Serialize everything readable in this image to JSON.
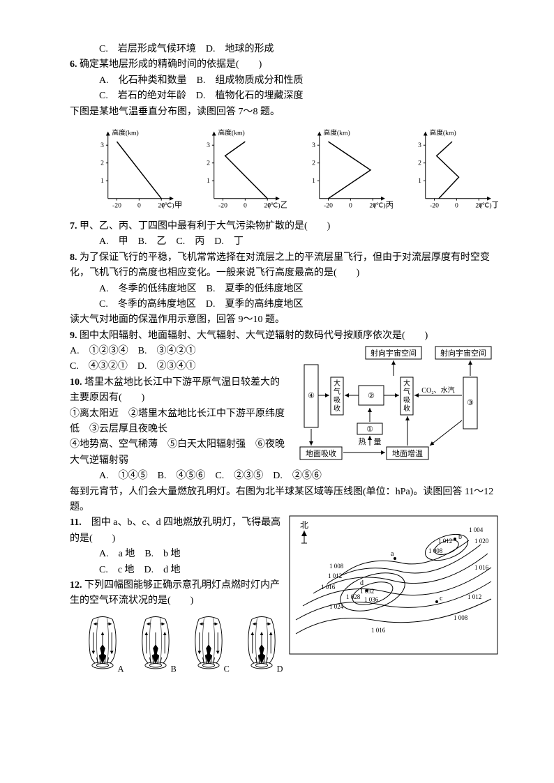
{
  "line_top": "C.　岩层形成气候环境　D.　地球的形成",
  "q6": {
    "stem": "确定某地层形成的精确时间的依据是(　　)",
    "optA": "A.　化石种类和数量　B.　组成物质成分和性质",
    "optC": "C.　岩石的绝对年龄　D.　植物化石的埋藏深度"
  },
  "pre7": "下图是某地气温垂直分布图，读图回答 7～8 题。",
  "charts": {
    "type": "line",
    "ylabel": "高度(km)",
    "xlabel_unit": "(℃)",
    "yticks": [
      1,
      2,
      3
    ],
    "xticks": [
      -20,
      0,
      20
    ],
    "xlim": [
      -28,
      28
    ],
    "ylim": [
      0,
      3.5
    ],
    "axis_color": "#000000",
    "line_color": "#000000",
    "line_width": 1.5,
    "background_color": "#ffffff",
    "fontsize": 10,
    "panels": [
      {
        "label": "甲",
        "points": [
          [
            20,
            0
          ],
          [
            -20,
            3.2
          ]
        ]
      },
      {
        "label": "乙",
        "points": [
          [
            20,
            0
          ],
          [
            -18,
            2.4
          ],
          [
            0,
            3.2
          ]
        ]
      },
      {
        "label": "丙",
        "points": [
          [
            -20,
            0
          ],
          [
            18,
            1.6
          ],
          [
            -20,
            3.2
          ]
        ]
      },
      {
        "label": "丁",
        "points": [
          [
            -16,
            0
          ],
          [
            2,
            1.2
          ],
          [
            -18,
            2.4
          ],
          [
            -4,
            3.2
          ]
        ]
      }
    ]
  },
  "q7": {
    "stem": "甲、乙、丙、丁四图中最有利于大气污染物扩散的是(　　)",
    "opts": "A.　甲　B.　乙　C.　丙　D.　丁"
  },
  "q8": {
    "stem": "为了保证飞行的平稳，飞机常常选择在对流层之上的平流层里飞行，但由于对流层厚度有时空变化，飞机飞行的高度也相应变化。一般来说飞行高度最高的是(　　)",
    "optA": "A.　冬季的低纬度地区　B.　夏季的低纬度地区",
    "optC": "C.　冬季的高纬度地区　D.　夏季的高纬度地区"
  },
  "pre9": "读大气对地面的保温作用示意图，回答 9～10 题。",
  "q9": {
    "stem": "图中太阳辐射、地面辐射、大气辐射、大气逆辐射的数码代号按顺序依次是(　　)",
    "optA": "A.　①②③④　B.　③④②①",
    "optC": "C.　④③②①　D.　②③④①"
  },
  "q10": {
    "stem": "塔里木盆地比长江中下游平原气温日较差大的主要原因有(　　)",
    "line1": "①离太阳近　②塔里木盆地比长江中下游平原纬度低　③云层厚且夜晚长",
    "line2": "④地势高、空气稀薄　⑤白天太阳辐射强　⑥夜晚大气逆辐射弱",
    "opts": "A.　①④⑤　B.　④⑤⑥　C.　②③⑤　D.　②⑤⑥"
  },
  "diagram9": {
    "type": "flowchart",
    "boxes": {
      "top_left": "射向宇宙空间",
      "top_right": "射向宇宙空间",
      "absorb": "大气吸收",
      "num1": "①",
      "num2": "②",
      "num3": "③",
      "num4": "④",
      "co2": "CO₂、水汽",
      "ground_absorb": "地面吸收",
      "heat": "热　量",
      "ground_warm": "地面增温"
    },
    "border_color": "#000000",
    "background_color": "#ffffff",
    "fontsize": 11
  },
  "pre11": "每到元宵节，人们会大量燃放孔明灯。右图为北半球某区域等压线图(单位：hPa)。读图回答 11～12 题。",
  "q11": {
    "stem": "图中 a、b、c、d 四地燃放孔明灯，飞得最高的是(　　)",
    "optA": "A.　a 地　B.　b 地",
    "optC": "C.　c 地　D.　d 地"
  },
  "q12": {
    "stem": "下列四幅图能够正确示意孔明灯点燃时灯内产生的空气环流状况的是(　　)"
  },
  "lanterns": {
    "type": "infographic",
    "labels": [
      "A",
      "B",
      "C",
      "D"
    ],
    "outline_color": "#000000",
    "fill_color": "#ffffff",
    "flame_color": "#000000"
  },
  "isomap": {
    "type": "map",
    "north_label": "北",
    "contours": [
      "1 004",
      "1 008",
      "1 012",
      "1 016",
      "1 020",
      "1 024",
      "1 028",
      "1 032",
      "1 036"
    ],
    "points": [
      "a",
      "b",
      "c",
      "d"
    ],
    "line_color": "#000000",
    "background_color": "#ffffff",
    "fontsize": 9
  }
}
